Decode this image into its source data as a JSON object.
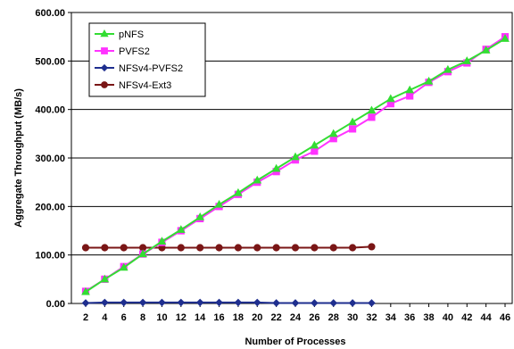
{
  "chart_data": {
    "type": "line",
    "xlabel": "Number of Processes",
    "ylabel": "Aggregate Throughput (MB/s)",
    "xlim": [
      2,
      46
    ],
    "ylim": [
      0,
      600
    ],
    "x_ticks": [
      2,
      4,
      6,
      8,
      10,
      12,
      14,
      16,
      18,
      20,
      22,
      24,
      26,
      28,
      30,
      32,
      34,
      36,
      38,
      40,
      42,
      44,
      46
    ],
    "y_ticks": [
      0,
      100,
      200,
      300,
      400,
      500,
      600
    ],
    "y_tick_labels": [
      "0.00",
      "100.00",
      "200.00",
      "300.00",
      "400.00",
      "500.00",
      "600.00"
    ],
    "legend_position": "top-left",
    "grid": "horizontal",
    "series": [
      {
        "name": "pNFS",
        "color": "#33dd33",
        "marker": "triangle",
        "x": [
          2,
          4,
          6,
          8,
          10,
          12,
          14,
          16,
          18,
          20,
          22,
          24,
          26,
          28,
          30,
          32,
          34,
          36,
          38,
          40,
          42,
          44,
          46
        ],
        "values": [
          24,
          50,
          74,
          102,
          128,
          152,
          178,
          204,
          228,
          254,
          278,
          302,
          326,
          350,
          374,
          398,
          422,
          440,
          458,
          482,
          500,
          522,
          546
        ]
      },
      {
        "name": "PVFS2",
        "color": "#ff33ff",
        "marker": "square",
        "x": [
          2,
          4,
          6,
          8,
          10,
          12,
          14,
          16,
          18,
          20,
          22,
          24,
          26,
          28,
          30,
          32,
          34,
          36,
          38,
          40,
          42,
          44,
          46
        ],
        "values": [
          25,
          50,
          76,
          102,
          126,
          150,
          175,
          200,
          225,
          250,
          272,
          296,
          314,
          340,
          360,
          384,
          412,
          428,
          456,
          478,
          496,
          524,
          550
        ]
      },
      {
        "name": "NFSv4-PVFS2",
        "color": "#1f2f8f",
        "marker": "diamond",
        "x": [
          2,
          4,
          6,
          8,
          10,
          12,
          14,
          16,
          18,
          20,
          22,
          24,
          26,
          28,
          30,
          32
        ],
        "values": [
          1,
          2,
          2,
          2,
          2,
          2,
          2,
          2,
          2,
          2,
          1,
          1,
          1,
          1,
          1,
          1
        ]
      },
      {
        "name": "NFSv4-Ext3",
        "color": "#7a1616",
        "marker": "circle",
        "x": [
          2,
          4,
          6,
          8,
          10,
          12,
          14,
          16,
          18,
          20,
          22,
          24,
          26,
          28,
          30,
          32
        ],
        "values": [
          115,
          115,
          115,
          115,
          115,
          115,
          115,
          115,
          115,
          115,
          115,
          115,
          115,
          115,
          115,
          117
        ]
      }
    ]
  }
}
